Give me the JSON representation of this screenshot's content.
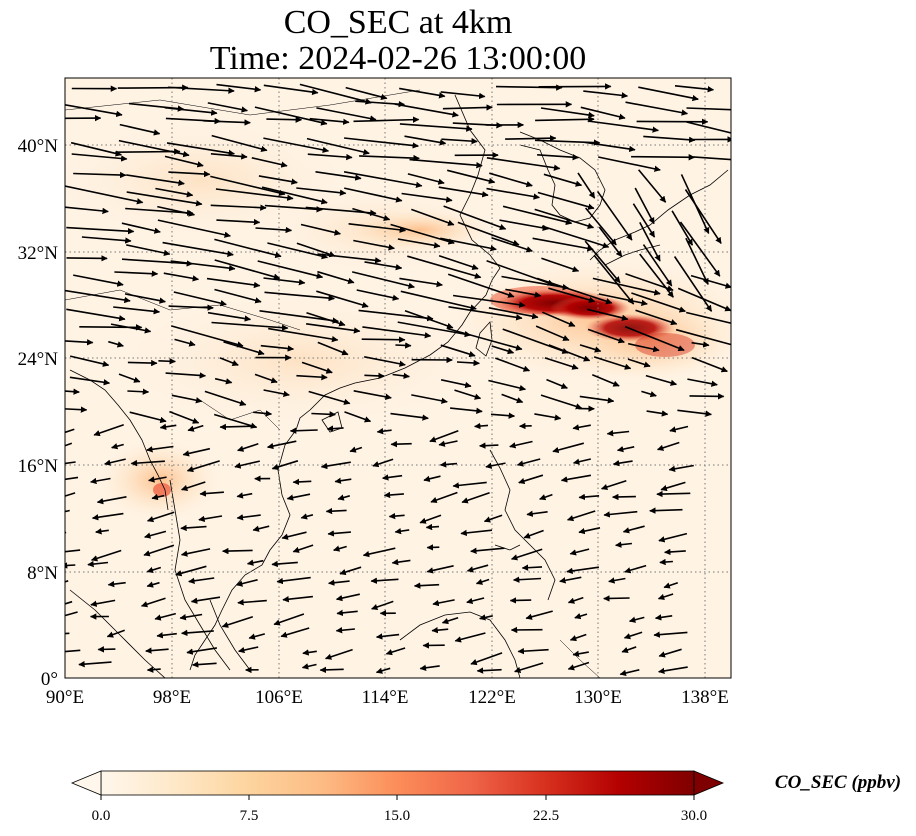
{
  "title": {
    "line1": "CO_SEC at 4km",
    "line2": "Time: 2024-02-26 13:00:00"
  },
  "map": {
    "lon_range": [
      90,
      140
    ],
    "lat_range": [
      0,
      45
    ],
    "lon_ticks": [
      "90°E",
      "98°E",
      "106°E",
      "114°E",
      "122°E",
      "130°E",
      "138°E"
    ],
    "lat_ticks": [
      "0°",
      "8°N",
      "16°N",
      "24°N",
      "32°N",
      "40°N"
    ],
    "gridlines": "dotted",
    "colormap": "OrRd",
    "plume_center_color": "#8b0000",
    "land_edge_color": "#000000"
  },
  "colorbar": {
    "label": "CO_SEC (ppbv)",
    "min": 0.0,
    "max": 30.0,
    "extend": "both",
    "ticks": [
      "0.0",
      "7.5",
      "15.0",
      "22.5",
      "30.0"
    ],
    "stops": [
      "#fff7ec",
      "#fee8c8",
      "#fdd49e",
      "#fdbb84",
      "#fc8d59",
      "#ef6548",
      "#d7301f",
      "#b30000",
      "#7f0000"
    ]
  },
  "wind_field": {
    "description_units": "arrows show wind vectors at 4km",
    "regimes": [
      {
        "region": "north (lat > 24)",
        "direction": "eastward"
      },
      {
        "region": "south (lat < 20)",
        "direction": "westward"
      }
    ]
  }
}
